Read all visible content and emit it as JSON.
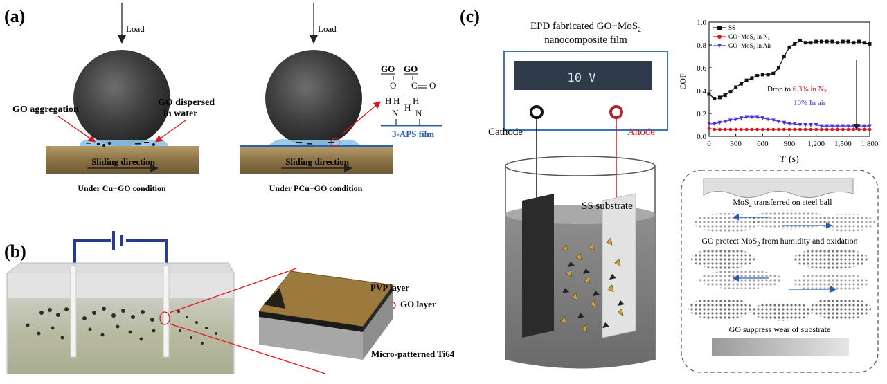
{
  "panel_labels": {
    "a": "(a)",
    "b": "(b)",
    "c": "(c)"
  },
  "panel_a": {
    "left": {
      "load": "Load",
      "aggregation": "GO aggregation",
      "dispersed_1": "GO dispersed",
      "dispersed_2": "in water",
      "sliding": "Sliding direction",
      "caption": "Under Cu−GO condition"
    },
    "right": {
      "load": "Load",
      "go_1": "GO",
      "go_2": "GO",
      "o": "O",
      "c": "C",
      "o2": "O",
      "h1": "H",
      "h2": "H",
      "n1": "N",
      "h3": "H",
      "h4": "H",
      "n2": "N",
      "film": "3-APS film",
      "sliding": "Sliding direction",
      "caption": "Under PCu−GO condition"
    }
  },
  "panel_b": {
    "pvp": "PVP layer",
    "go": "GO layer",
    "ti": "Micro-patterned Ti64"
  },
  "panel_c": {
    "title_1": "EPD fabricated GO−MoS",
    "title_1_sub": "2",
    "title_2": "nanocomposite film",
    "voltage": "10 V",
    "cathode": "Cathode",
    "anode": "Anode",
    "substrate": "SS substrate",
    "mech": {
      "line1": "MoS",
      "line1_sub": "2",
      "line1_rest": " transferred on steel ball",
      "line2": "GO protect MoS",
      "line2_sub": "2",
      "line2_rest": " from humidity and oxidation",
      "line3": "GO suppress wear of substrate"
    }
  },
  "chart_data": {
    "type": "line",
    "xlabel": "T",
    "xlabel_unit": "(s)",
    "ylabel": "COF",
    "xlim": [
      0,
      1800
    ],
    "ylim": [
      0.0,
      1.0
    ],
    "xticks": [
      "0",
      "300",
      "600",
      "900",
      "1,200",
      "1,500",
      "1,800"
    ],
    "yticks": [
      "0.0",
      "0.2",
      "0.4",
      "0.6",
      "0.8",
      "1.0"
    ],
    "annotation_1a": "Drop to ",
    "annotation_1b": "6.3% in N",
    "annotation_1b_sub": "2",
    "annotation_2": "10% In air",
    "legend_placement": "top-left",
    "series": [
      {
        "name": "SS",
        "color": "#111111",
        "marker": "square",
        "x": [
          0,
          60,
          120,
          180,
          240,
          300,
          360,
          420,
          480,
          540,
          600,
          660,
          720,
          780,
          840,
          900,
          960,
          1020,
          1080,
          1140,
          1200,
          1260,
          1320,
          1380,
          1440,
          1500,
          1560,
          1620,
          1680,
          1740,
          1800
        ],
        "y": [
          0.37,
          0.33,
          0.34,
          0.36,
          0.39,
          0.43,
          0.46,
          0.49,
          0.51,
          0.53,
          0.54,
          0.54,
          0.55,
          0.6,
          0.7,
          0.78,
          0.81,
          0.84,
          0.82,
          0.82,
          0.83,
          0.83,
          0.83,
          0.83,
          0.82,
          0.83,
          0.83,
          0.82,
          0.83,
          0.82,
          0.81
        ]
      },
      {
        "name": "GO−MoS₂ in N₂",
        "color": "#e0151b",
        "marker": "circle",
        "x": [
          0,
          60,
          120,
          180,
          240,
          300,
          360,
          420,
          480,
          540,
          600,
          660,
          720,
          780,
          840,
          900,
          960,
          1020,
          1080,
          1140,
          1200,
          1260,
          1320,
          1380,
          1440,
          1500,
          1560,
          1620,
          1680,
          1740,
          1800
        ],
        "y": [
          0.07,
          0.06,
          0.06,
          0.06,
          0.06,
          0.06,
          0.06,
          0.06,
          0.06,
          0.06,
          0.06,
          0.06,
          0.06,
          0.06,
          0.06,
          0.06,
          0.06,
          0.06,
          0.06,
          0.06,
          0.06,
          0.06,
          0.06,
          0.06,
          0.06,
          0.06,
          0.06,
          0.06,
          0.06,
          0.06,
          0.06
        ]
      },
      {
        "name": "GO−MoS₂ in Air",
        "color": "#4b34d6",
        "marker": "triangle-down",
        "x": [
          0,
          60,
          120,
          180,
          240,
          300,
          360,
          420,
          480,
          540,
          600,
          660,
          720,
          780,
          840,
          900,
          960,
          1020,
          1080,
          1140,
          1200,
          1260,
          1320,
          1380,
          1440,
          1500,
          1560,
          1620,
          1680,
          1740,
          1800
        ],
        "y": [
          0.11,
          0.11,
          0.12,
          0.13,
          0.14,
          0.15,
          0.16,
          0.17,
          0.17,
          0.17,
          0.16,
          0.15,
          0.14,
          0.13,
          0.12,
          0.11,
          0.11,
          0.1,
          0.1,
          0.1,
          0.1,
          0.09,
          0.09,
          0.09,
          0.09,
          0.09,
          0.09,
          0.09,
          0.09,
          0.09,
          0.09
        ]
      }
    ]
  }
}
